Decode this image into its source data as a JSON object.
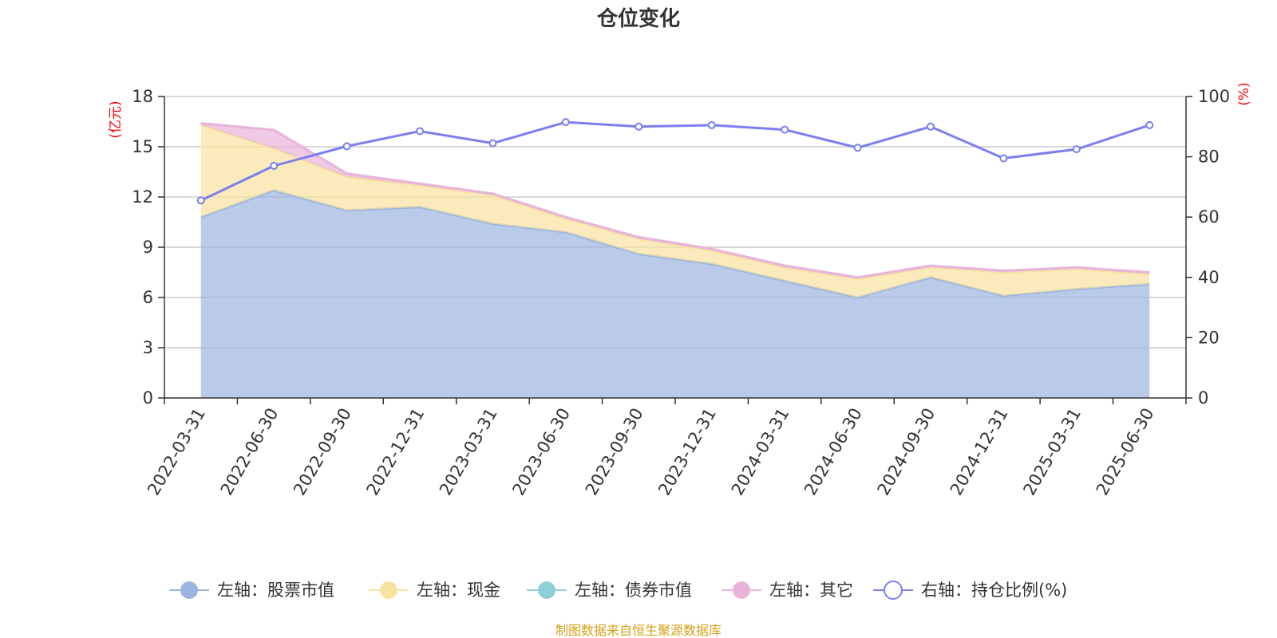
{
  "chart_data": {
    "type": "area",
    "title": "仓位变化",
    "left_axis_unit": "(亿元)",
    "right_axis_unit": "(%)",
    "ylim_left": [
      0,
      18
    ],
    "yticks_left": [
      0,
      3,
      6,
      9,
      12,
      15,
      18
    ],
    "ylim_right": [
      0,
      100
    ],
    "yticks_right": [
      0,
      20,
      40,
      60,
      80,
      100
    ],
    "categories": [
      "2022-03-31",
      "2022-06-30",
      "2022-09-30",
      "2022-12-31",
      "2023-03-31",
      "2023-06-30",
      "2023-09-30",
      "2023-12-31",
      "2024-03-31",
      "2024-06-30",
      "2024-09-30",
      "2024-12-31",
      "2025-03-31",
      "2025-06-30"
    ],
    "series": [
      {
        "name": "左轴：股票市值",
        "axis": "left",
        "stack": true,
        "color": "#9bb5e0",
        "values": [
          10.8,
          12.4,
          11.2,
          11.4,
          10.4,
          9.9,
          8.6,
          8.0,
          7.0,
          6.0,
          7.2,
          6.1,
          6.5,
          6.8
        ]
      },
      {
        "name": "左轴：现金",
        "axis": "left",
        "stack": true,
        "color": "#f9e3a0",
        "values": [
          5.5,
          2.5,
          2.0,
          1.3,
          1.7,
          0.8,
          0.9,
          0.8,
          0.8,
          1.1,
          0.6,
          1.4,
          1.2,
          0.6
        ]
      },
      {
        "name": "左轴：债券市值",
        "axis": "left",
        "stack": true,
        "color": "#8fd0d8",
        "values": [
          0,
          0,
          0,
          0,
          0,
          0,
          0,
          0,
          0,
          0,
          0,
          0,
          0,
          0
        ]
      },
      {
        "name": "左轴：其它",
        "axis": "left",
        "stack": true,
        "color": "#e8b4da",
        "values": [
          0.1,
          1.1,
          0.2,
          0.1,
          0.1,
          0.1,
          0.1,
          0.1,
          0.1,
          0.1,
          0.1,
          0.1,
          0.1,
          0.1
        ]
      },
      {
        "name": "右轴：持仓比例(%)",
        "axis": "right",
        "stack": false,
        "color": "#7b7fef",
        "values": [
          65.5,
          77.0,
          83.5,
          88.5,
          84.5,
          91.5,
          90.0,
          90.5,
          89.0,
          83.0,
          90.0,
          79.5,
          82.5,
          90.5
        ]
      }
    ],
    "legend_position": "bottom",
    "grid": true
  },
  "source_note": "制图数据来自恒生聚源数据库"
}
